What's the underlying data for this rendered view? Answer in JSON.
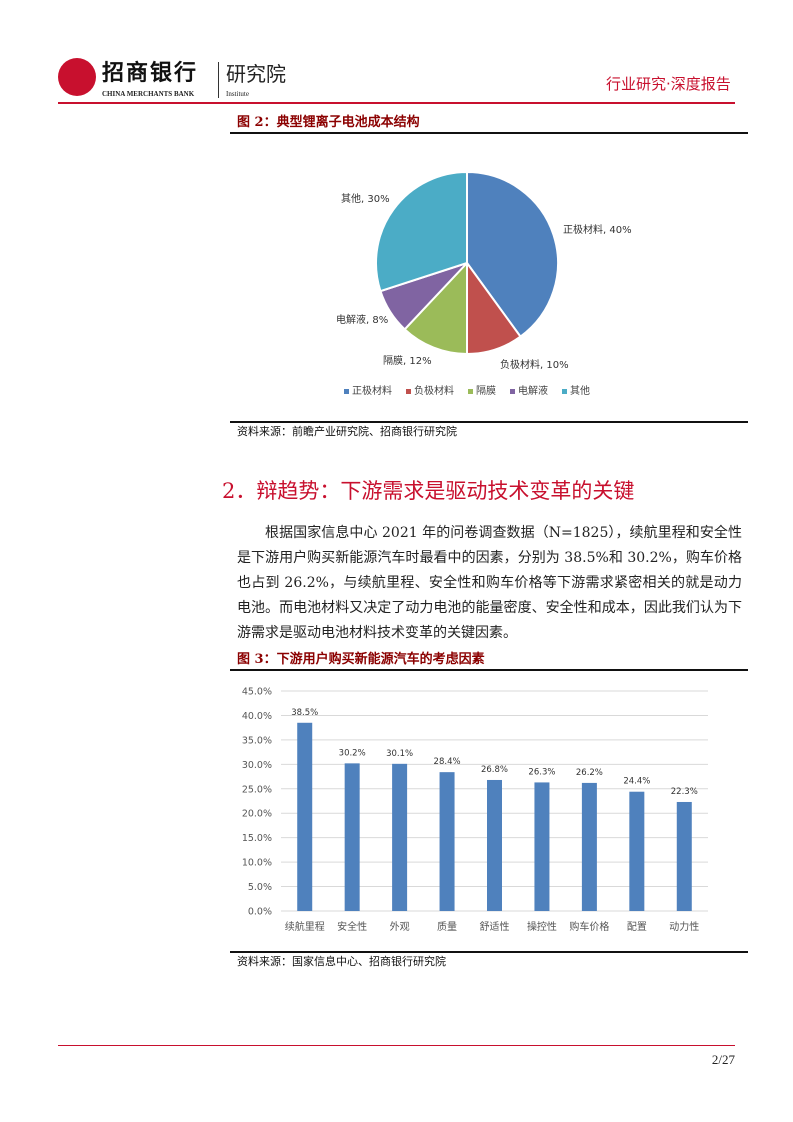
{
  "header": {
    "logo_cn": "招商银行",
    "logo_en": "CHINA MERCHANTS BANK",
    "institute_cn": "研究院",
    "institute_en": "Institute",
    "report_type": "行业研究·深度报告"
  },
  "figure2": {
    "title": "图 2：典型锂离子电池成本结构",
    "source": "资料来源：前瞻产业研究院、招商银行研究院"
  },
  "section": {
    "heading": "2．辩趋势：下游需求是驱动技术变革的关键",
    "paragraph": "根据国家信息中心 2021 年的问卷调查数据（N=1825），续航里程和安全性是下游用户购买新能源汽车时最看中的因素，分别为 38.5%和 30.2%，购车价格也占到 26.2%，与续航里程、安全性和购车价格等下游需求紧密相关的就是动力电池。而电池材料又决定了动力电池的能量密度、安全性和成本，因此我们认为下游需求是驱动电池材料技术变革的关键因素。"
  },
  "figure3": {
    "title": "图 3：下游用户购买新能源汽车的考虑因素",
    "source": "资料来源：国家信息中心、招商银行研究院"
  },
  "footer": {
    "page": "2/27"
  },
  "chart_data": [
    {
      "type": "pie",
      "categories": [
        "正极材料",
        "负极材料",
        "隔膜",
        "电解液",
        "其他"
      ],
      "values": [
        40,
        10,
        12,
        8,
        30
      ],
      "data_labels": [
        "正极材料, 40%",
        "负极材料, 10%",
        "隔膜, 12%",
        "电解液, 8%",
        "其他, 30%"
      ],
      "colors": [
        "#4F81BD",
        "#C0504D",
        "#9BBB59",
        "#8064A2",
        "#4BACC6"
      ],
      "legend": "bottom"
    },
    {
      "type": "bar",
      "categories": [
        "续航里程",
        "安全性",
        "外观",
        "质量",
        "舒适性",
        "操控性",
        "购车价格",
        "配置",
        "动力性"
      ],
      "values": [
        38.5,
        30.2,
        30.1,
        28.4,
        26.8,
        26.3,
        26.2,
        24.4,
        22.3
      ],
      "data_labels": [
        "38.5%",
        "30.2%",
        "30.1%",
        "28.4%",
        "26.8%",
        "26.3%",
        "26.2%",
        "24.4%",
        "22.3%"
      ],
      "yticks": [
        "0.0%",
        "5.0%",
        "10.0%",
        "15.0%",
        "20.0%",
        "25.0%",
        "30.0%",
        "35.0%",
        "40.0%",
        "45.0%"
      ],
      "ylim": [
        0,
        45
      ],
      "grid": true,
      "color": "#4F81BD"
    }
  ]
}
